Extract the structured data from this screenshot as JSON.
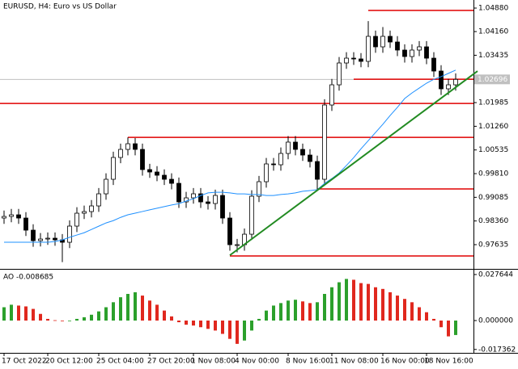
{
  "chart_data": [
    {
      "type": "candlestick",
      "title": "EURUSD, H4:  Euro vs US Dollar",
      "categories": [
        "17 Oct 2022",
        null,
        null,
        null,
        null,
        null,
        "20 Oct 12:00",
        null,
        null,
        null,
        null,
        null,
        null,
        "25 Oct 04:00",
        null,
        null,
        null,
        null,
        null,
        null,
        "27 Oct 20:00",
        null,
        null,
        null,
        null,
        null,
        "1 Nov 08:00",
        null,
        null,
        null,
        null,
        null,
        "4 Nov 00:00",
        null,
        null,
        null,
        null,
        null,
        null,
        "8 Nov 16:00",
        null,
        null,
        null,
        null,
        null,
        "11 Nov 08:00",
        null,
        null,
        null,
        null,
        null,
        null,
        "16 Nov 00:00",
        null,
        null,
        null,
        null,
        null,
        "18 Nov 16:00",
        null,
        null,
        null,
        null
      ],
      "open": [
        0.9845,
        0.98499,
        0.98549,
        0.9845,
        0.98079,
        0.97757,
        0.97807,
        0.97832,
        0.97782,
        0.97708,
        0.98203,
        0.98598,
        0.98648,
        0.98821,
        0.99192,
        0.99637,
        1.00305,
        1.00552,
        1.00725,
        1.00552,
        0.99934,
        0.9986,
        0.99761,
        0.99637,
        0.99513,
        0.98944,
        0.99068,
        0.99192,
        0.98944,
        0.98895,
        0.99142,
        0.9845,
        0.97634,
        0.97634,
        0.97955,
        0.99118,
        0.99563,
        1.00107,
        1.00082,
        1.00428,
        1.00775,
        1.00552,
        1.00379,
        1.00181,
        0.99637,
        1.01912,
        1.0253,
        1.03198,
        1.03346,
        1.03322,
        1.03248,
        1.04014,
        1.03693,
        1.04014,
        1.03841,
        1.03594,
        1.03396,
        1.03594,
        1.03693,
        1.03346,
        1.02951,
        1.02407,
        1.0253
      ],
      "high": [
        0.9868,
        0.9873,
        0.9873,
        0.9863,
        0.9826,
        0.9799,
        0.9801,
        0.9801,
        0.9796,
        0.9838,
        0.9878,
        0.9883,
        0.99,
        0.9937,
        0.9982,
        1.0048,
        1.0073,
        1.0092,
        1.009,
        1.0073,
        1.0011,
        1.0004,
        0.9994,
        0.9982,
        0.9969,
        0.9925,
        0.9937,
        0.9937,
        0.9912,
        0.9932,
        0.9932,
        0.9863,
        0.9781,
        0.9813,
        0.993,
        0.9974,
        1.0029,
        1.0029,
        1.0061,
        1.0096,
        1.0096,
        1.0073,
        1.0056,
        1.0036,
        1.0209,
        1.0271,
        1.0338,
        1.0353,
        1.0353,
        1.035,
        1.0448,
        1.0419,
        1.043,
        1.0419,
        1.0402,
        1.0377,
        1.0377,
        1.0387,
        1.0387,
        1.0353,
        1.0313,
        1.0271,
        1.0288
      ],
      "low": [
        0.9827,
        0.9832,
        0.9827,
        0.979,
        0.9757,
        0.9758,
        0.9763,
        0.976,
        0.971,
        0.9753,
        0.9802,
        0.9842,
        0.9847,
        0.9864,
        0.9901,
        0.9946,
        1.0013,
        1.0037,
        1.0037,
        0.9975,
        0.9968,
        0.9958,
        0.9946,
        0.9933,
        0.9876,
        0.9876,
        0.9889,
        0.9876,
        0.9871,
        0.9871,
        0.9827,
        0.9745,
        0.974,
        0.9745,
        0.9778,
        0.9894,
        0.9938,
        0.999,
        0.999,
        1.0025,
        1.0037,
        1.002,
        1.0,
        0.9933,
        0.9946,
        1.0173,
        1.0235,
        1.0302,
        1.0314,
        1.0307,
        1.0307,
        1.0351,
        1.0351,
        1.0366,
        1.0341,
        1.0321,
        1.0321,
        1.0341,
        1.0316,
        1.0277,
        1.0222,
        1.0222,
        1.0235
      ],
      "close": [
        0.98499,
        0.98549,
        0.9845,
        0.98079,
        0.97757,
        0.97807,
        0.97832,
        0.97782,
        0.97708,
        0.98203,
        0.98598,
        0.98648,
        0.98821,
        0.99192,
        0.99637,
        1.00305,
        1.00552,
        1.00725,
        1.00552,
        0.99934,
        0.9986,
        0.99761,
        0.99637,
        0.99513,
        0.98944,
        0.99068,
        0.99192,
        0.98944,
        0.98895,
        0.99142,
        0.9845,
        0.97634,
        0.97634,
        0.97955,
        0.99118,
        0.99563,
        1.00107,
        1.00082,
        1.00428,
        1.00775,
        1.00552,
        1.00379,
        1.00181,
        0.99637,
        1.01912,
        1.0253,
        1.03198,
        1.03346,
        1.03322,
        1.03248,
        1.04014,
        1.03693,
        1.04014,
        1.03841,
        1.03594,
        1.03396,
        1.03594,
        1.03693,
        1.03346,
        1.02951,
        1.02407,
        1.0253,
        1.02696
      ],
      "ma": [
        0.9771,
        0.9771,
        0.9771,
        0.9771,
        0.9771,
        0.9771,
        0.9771,
        0.9773,
        0.9778,
        0.9786,
        0.9793,
        0.98,
        0.981,
        0.982,
        0.983,
        0.9837,
        0.9847,
        0.9855,
        0.986,
        0.9865,
        0.987,
        0.9875,
        0.988,
        0.9885,
        0.9889,
        0.9897,
        0.9904,
        0.9914,
        0.9922,
        0.9924,
        0.9924,
        0.9922,
        0.9919,
        0.9919,
        0.9917,
        0.9917,
        0.9914,
        0.9914,
        0.9917,
        0.9919,
        0.9922,
        0.9927,
        0.9929,
        0.9932,
        0.9951,
        0.9966,
        0.9983,
        1.0006,
        1.003,
        1.0057,
        1.0082,
        1.0107,
        1.0132,
        1.0159,
        1.0184,
        1.0211,
        1.0228,
        1.0243,
        1.0258,
        1.027,
        1.0278,
        1.0288,
        1.0298
      ],
      "ma_color": "#1e90ff",
      "up_fill": "#ffffff",
      "down_fill": "#000000",
      "candle_color": "#000000",
      "ylim": [
        0.96893,
        1.05127
      ],
      "yticks": [
        {
          "value": 1.0488,
          "label": "1.04880"
        },
        {
          "value": 1.0416,
          "label": "1.04160"
        },
        {
          "value": 1.03435,
          "label": "1.03435"
        },
        {
          "value": 1.01985,
          "label": "1.01985"
        },
        {
          "value": 1.0126,
          "label": "1.01260"
        },
        {
          "value": 1.00535,
          "label": "1.00535"
        },
        {
          "value": 0.9981,
          "label": "0.99810"
        },
        {
          "value": 0.99085,
          "label": "0.99085"
        },
        {
          "value": 0.9836,
          "label": "0.98360"
        },
        {
          "value": 0.97635,
          "label": "0.97635"
        }
      ],
      "last_price": {
        "value": 1.02696,
        "label": "1.02696"
      },
      "level_color": "#e00000",
      "levels": [
        {
          "price": 1.0196,
          "start": 0
        },
        {
          "price": 1.0092,
          "start": 17
        },
        {
          "price": 0.9934,
          "start": 43
        },
        {
          "price": 0.9729,
          "start": 31
        },
        {
          "price": 1.0481,
          "start": 50
        },
        {
          "price": 1.027,
          "start": 48
        }
      ],
      "trendline": {
        "color": "#228b22",
        "start": 31,
        "start_price": 0.9731,
        "end": 65,
        "end_price": 1.0295
      }
    },
    {
      "type": "bar",
      "title": "AO -0.008685",
      "values": [
        0.008,
        0.0095,
        0.009,
        0.0085,
        0.007,
        0.004,
        0.001,
        0.0002,
        -0.0003,
        0.0,
        0.001,
        0.002,
        0.0035,
        0.0055,
        0.008,
        0.011,
        0.014,
        0.016,
        0.017,
        0.015,
        0.012,
        0.0095,
        0.006,
        0.0025,
        -0.001,
        -0.0025,
        -0.003,
        -0.004,
        -0.005,
        -0.006,
        -0.008,
        -0.011,
        -0.014,
        -0.012,
        -0.006,
        0.001,
        0.006,
        0.009,
        0.0105,
        0.012,
        0.0125,
        0.0115,
        0.0105,
        0.011,
        0.016,
        0.02,
        0.023,
        0.025,
        0.0245,
        0.0225,
        0.022,
        0.02,
        0.019,
        0.017,
        0.015,
        0.013,
        0.011,
        0.008,
        0.005,
        0.001,
        -0.004,
        -0.0095,
        -0.008685
      ],
      "up_color": "#2ca02c",
      "down_color": "#e0281e",
      "ylim": [
        -0.0194,
        0.03007
      ],
      "yticks": [
        0.027644,
        {
          "value": 0,
          "label": "0.000000"
        },
        -0.017362
      ]
    }
  ]
}
